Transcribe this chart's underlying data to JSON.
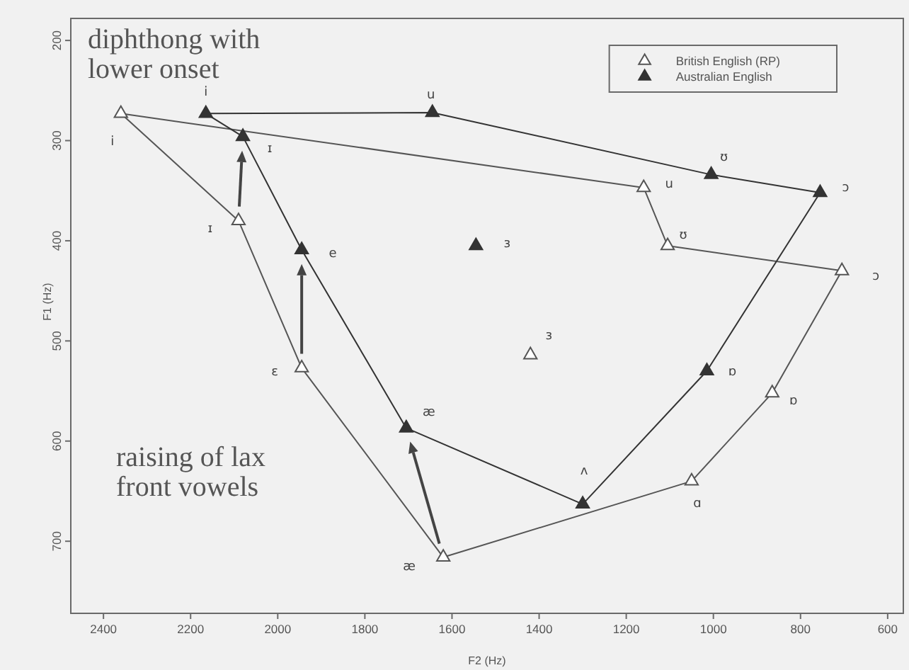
{
  "chart_data": {
    "type": "scatter",
    "xlabel": "F2 (Hz)",
    "ylabel": "F1 (Hz)",
    "xlim": [
      2475,
      564
    ],
    "xticks": [
      2400,
      2200,
      2000,
      1800,
      1600,
      1400,
      1200,
      1000,
      800,
      600
    ],
    "ylim": [
      772,
      178
    ],
    "yticks": [
      200,
      300,
      400,
      500,
      600,
      700
    ],
    "legend": "top right",
    "marker": "triangle",
    "series": [
      {
        "name": "British English (RP)",
        "color": "#555555",
        "x": [
          2360,
          2090,
          1945,
          1620,
          1050,
          865,
          705,
          1105,
          1160,
          1420
        ],
        "values": [
          273,
          380,
          527,
          716,
          640,
          552,
          430,
          405,
          347,
          514
        ]
      },
      {
        "name": "Australian English",
        "color": "#333333",
        "x": [
          2165,
          2080,
          1945,
          1705,
          1300,
          1015,
          755,
          1005,
          1645,
          1545
        ],
        "values": [
          273,
          296,
          409,
          587,
          663,
          530,
          352,
          334,
          272,
          405
        ]
      },
      {
        "type": "line",
        "marker": "none",
        "color": "#555555",
        "x": [
          2360,
          2090,
          1945,
          1620,
          1050,
          865,
          705
        ],
        "values": [
          273,
          380,
          527,
          716,
          640,
          552,
          430
        ]
      },
      {
        "type": "line",
        "marker": "none",
        "color": "#555555",
        "x": [
          705,
          1105,
          1160,
          2360
        ],
        "values": [
          430,
          405,
          347,
          273
        ]
      },
      {
        "type": "line",
        "marker": "none",
        "color": "#333333",
        "x": [
          2165,
          1645,
          1005,
          755
        ],
        "values": [
          273,
          272,
          334,
          352
        ]
      },
      {
        "type": "line",
        "marker": "none",
        "color": "#333333",
        "x": [
          755,
          1015,
          1300,
          1705,
          1945,
          2080,
          2165
        ],
        "values": [
          352,
          530,
          663,
          587,
          409,
          296,
          273
        ]
      }
    ],
    "annotations": [
      {
        "text": "i",
        "x": 2360,
        "y": 273
      },
      {
        "text": "ɪ",
        "x": 2090,
        "y": 380
      },
      {
        "text": "ɛ",
        "x": 1945,
        "y": 527
      },
      {
        "text": "æ",
        "x": 1620,
        "y": 716
      },
      {
        "text": "ɑ",
        "x": 1050,
        "y": 640
      },
      {
        "text": "ɒ",
        "x": 865,
        "y": 552
      },
      {
        "text": "ɔ",
        "x": 705,
        "y": 430
      },
      {
        "text": "ʊ",
        "x": 1105,
        "y": 405
      },
      {
        "text": "u",
        "x": 1160,
        "y": 347
      },
      {
        "text": "ɜ",
        "x": 1420,
        "y": 514
      },
      {
        "text": "i",
        "x": 2165,
        "y": 273
      },
      {
        "text": "ɪ",
        "x": 2080,
        "y": 296
      },
      {
        "text": "e",
        "x": 1945,
        "y": 409
      },
      {
        "text": "æ",
        "x": 1705,
        "y": 587
      },
      {
        "text": "ʌ",
        "x": 1300,
        "y": 663
      },
      {
        "text": "ɒ",
        "x": 1015,
        "y": 530
      },
      {
        "text": "ɔ",
        "x": 755,
        "y": 352
      },
      {
        "text": "ʊ",
        "x": 1005,
        "y": 334
      },
      {
        "text": "u",
        "x": 1645,
        "y": 272
      },
      {
        "text": "ɜ",
        "x": 1545,
        "y": 405
      },
      "diphthong with lower onset",
      "raising of lax front vowels"
    ]
  }
}
